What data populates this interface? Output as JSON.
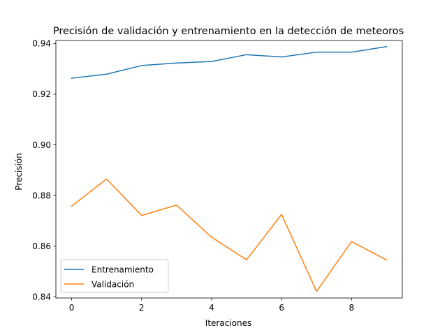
{
  "chart_data": {
    "type": "line",
    "title": "Precisión de validación y entrenamiento en la detección de meteoros",
    "xlabel": "Iteraciones",
    "ylabel": "Precisión",
    "x": [
      0,
      1,
      2,
      3,
      4,
      5,
      6,
      7,
      8,
      9
    ],
    "xlim": [
      -0.45,
      9.45
    ],
    "ylim": [
      0.8395,
      0.9412
    ],
    "xticks": [
      0,
      2,
      4,
      6,
      8
    ],
    "yticks": [
      0.84,
      0.86,
      0.88,
      0.9,
      0.92,
      0.94
    ],
    "xtick_labels": [
      "0",
      "2",
      "4",
      "6",
      "8"
    ],
    "ytick_labels": [
      "0.84",
      "0.86",
      "0.88",
      "0.90",
      "0.92",
      "0.94"
    ],
    "grid": false,
    "legend_position": "lower-left",
    "series": [
      {
        "name": "Entrenamiento",
        "color": "#1f77b4",
        "values": [
          0.9263,
          0.9279,
          0.9313,
          0.9323,
          0.9329,
          0.9356,
          0.9347,
          0.9366,
          0.9366,
          0.9388
        ]
      },
      {
        "name": "Validación",
        "color": "#ff7f0e",
        "values": [
          0.8758,
          0.8865,
          0.8721,
          0.8762,
          0.8635,
          0.8546,
          0.8725,
          0.8421,
          0.8618,
          0.8545
        ]
      }
    ]
  }
}
